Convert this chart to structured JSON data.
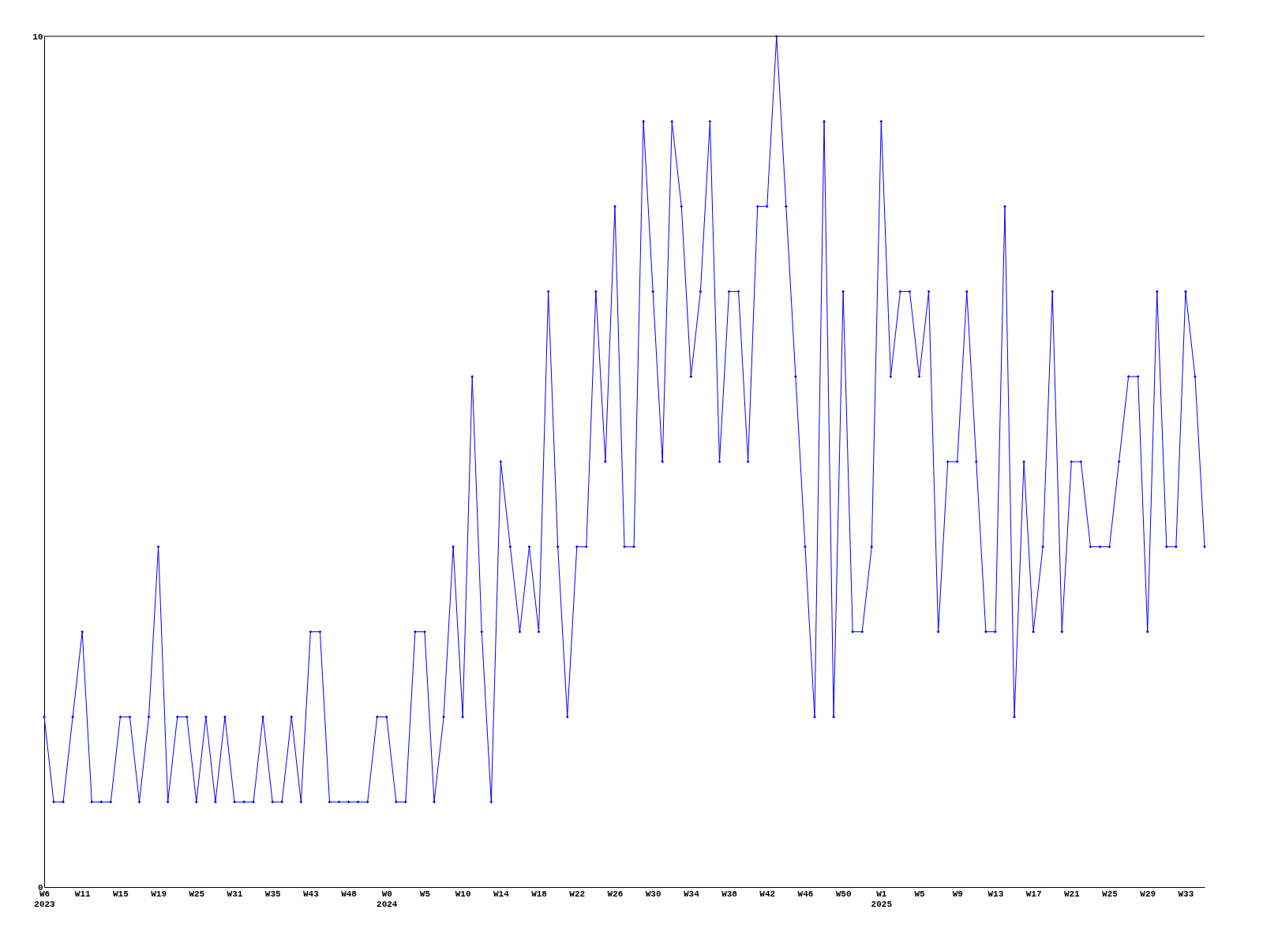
{
  "chart_data": {
    "type": "line",
    "categories": [
      "W6\n2023",
      null,
      null,
      null,
      "W11",
      null,
      null,
      null,
      "W15",
      null,
      null,
      null,
      "W19",
      null,
      null,
      null,
      "W25",
      null,
      null,
      null,
      "W31",
      null,
      null,
      null,
      "W35",
      null,
      null,
      null,
      "W43",
      null,
      null,
      null,
      "W48",
      null,
      null,
      null,
      "W0\n2024",
      null,
      null,
      null,
      "W5",
      null,
      null,
      null,
      "W10",
      null,
      null,
      null,
      "W14",
      null,
      null,
      null,
      "W18",
      null,
      null,
      null,
      "W22",
      null,
      null,
      null,
      "W26",
      null,
      null,
      null,
      "W30",
      null,
      null,
      null,
      "W34",
      null,
      null,
      null,
      "W38",
      null,
      null,
      null,
      "W42",
      null,
      null,
      null,
      "W46",
      null,
      null,
      null,
      "W50",
      null,
      null,
      null,
      "W1\n2025",
      null,
      null,
      null,
      "W5",
      null,
      null,
      null,
      "W9",
      null,
      null,
      null,
      "W13",
      null,
      null,
      null,
      "W17",
      null,
      null,
      null,
      "W21",
      null,
      null,
      null,
      "W25",
      null,
      null,
      null,
      "W29",
      null,
      null,
      null,
      "W33",
      null,
      null
    ],
    "series": [
      {
        "color": "#0000ff",
        "values": [
          2,
          1,
          1,
          2,
          3,
          1,
          1,
          1,
          2,
          2,
          1,
          2,
          4,
          1,
          2,
          2,
          1,
          2,
          1,
          2,
          1,
          1,
          1,
          2,
          1,
          1,
          2,
          1,
          3,
          3,
          1,
          1,
          1,
          1,
          1,
          2,
          2,
          1,
          1,
          3,
          3,
          1,
          2,
          4,
          2,
          6,
          3,
          1,
          5,
          4,
          3,
          4,
          3,
          7,
          4,
          2,
          4,
          4,
          7,
          5,
          8,
          4,
          4,
          9,
          7,
          5,
          9,
          8,
          6,
          7,
          9,
          5,
          7,
          7,
          5,
          8,
          8,
          10,
          8,
          6,
          4,
          2,
          9,
          2,
          7,
          3,
          3,
          4,
          9,
          6,
          7,
          7,
          6,
          7,
          3,
          5,
          5,
          7,
          5,
          3,
          3,
          8,
          2,
          5,
          3,
          4,
          7,
          3,
          5,
          5,
          4,
          4,
          4,
          5,
          6,
          6,
          3,
          7,
          4,
          4,
          7,
          6,
          4
        ]
      }
    ],
    "ylim": [
      0,
      10
    ],
    "yticks": [
      0,
      10
    ],
    "grid": false,
    "marker": "diamond",
    "line_style": "solid"
  }
}
